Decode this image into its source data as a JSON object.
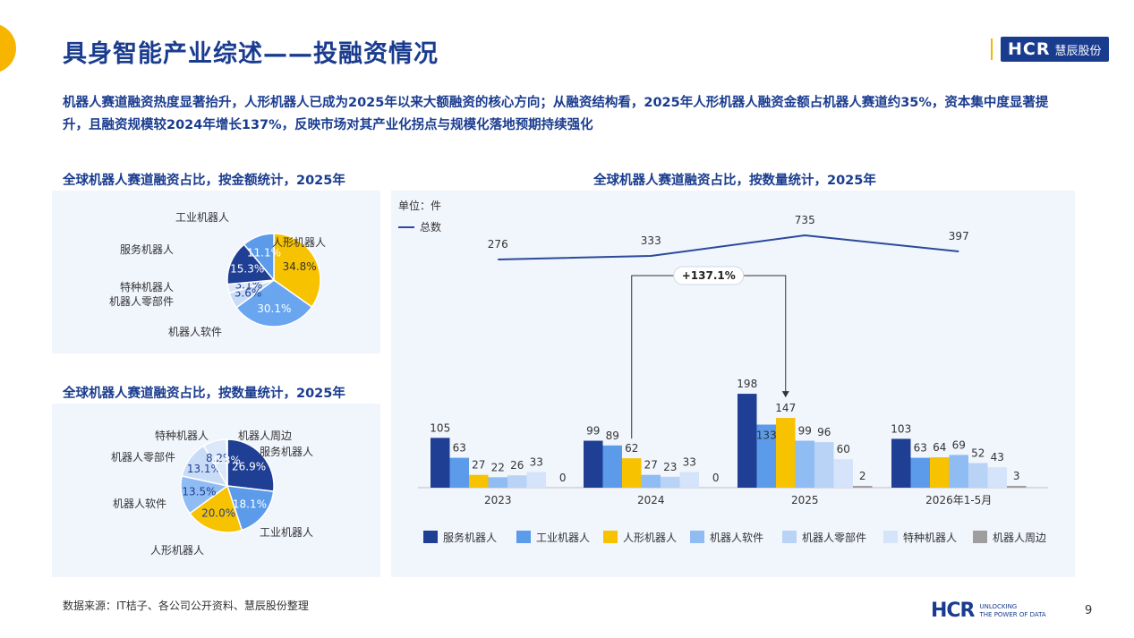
{
  "header": {
    "title": "具身智能产业综述——投融资情况",
    "logo_text": "HCR",
    "logo_subtext": "慧辰股份"
  },
  "summary": "机器人赛道融资热度显著抬升，人形机器人已成为2025年以来大额融资的核心方向；从融资结构看，2025年人形机器人融资金额占机器人赛道约35%，资本集中度显著提升，且融资规模较2024年增长137%，反映市场对其产业化拐点与规模化落地预期持续强化",
  "footer": {
    "source": "数据来源：IT桔子、各公司公开资料、慧辰股份整理",
    "logo": "HCR",
    "tagline_1": "UNLOCKING",
    "tagline_2": "THE POWER OF DATA",
    "page_number": "9"
  },
  "chart_data": [
    {
      "type": "pie",
      "title": "全球机器人赛道融资占比，按金额统计，2025年",
      "labels": [
        "人形机器人",
        "机器人软件",
        "机器人零部件",
        "特种机器人",
        "服务机器人",
        "工业机器人"
      ],
      "values": [
        34.8,
        30.1,
        5.6,
        3.1,
        15.3,
        11.1
      ],
      "value_labels": [
        "34.8%",
        "30.1%",
        "5.6%",
        "3.1%",
        "15.3%",
        "11.1%"
      ],
      "colors": [
        "#f7c200",
        "#6aa6f0",
        "#c9dcf7",
        "#dbe8fa",
        "#1f3f94",
        "#5b9bea"
      ]
    },
    {
      "type": "pie",
      "title": "全球机器人赛道融资占比，按数量统计，2025年",
      "labels": [
        "服务机器人",
        "工业机器人",
        "人形机器人",
        "机器人软件",
        "机器人零部件",
        "特种机器人",
        "机器人周边"
      ],
      "values": [
        26.9,
        18.1,
        20.0,
        13.5,
        13.1,
        8.2,
        0.3
      ],
      "value_labels": [
        "26.9%",
        "18.1%",
        "20.0%",
        "13.5%",
        "13.1%",
        "8.2%",
        "0.3%"
      ],
      "colors": [
        "#1f3f94",
        "#5b9bea",
        "#f7c200",
        "#8fbcf3",
        "#c9dcf7",
        "#dbe8fa",
        "#9e9e9e"
      ]
    },
    {
      "type": "bar",
      "title": "全球机器人赛道融资占比，按数量统计，2025年",
      "unit_label": "单位：件",
      "categories": [
        "2023",
        "2024",
        "2025",
        "2026年1-5月"
      ],
      "series": [
        {
          "name": "服务机器人",
          "values": [
            105,
            99,
            198,
            103
          ],
          "color": "#1f3f94"
        },
        {
          "name": "工业机器人",
          "values": [
            63,
            89,
            133,
            63
          ],
          "color": "#5b9bea"
        },
        {
          "name": "人形机器人",
          "values": [
            27,
            62,
            147,
            64
          ],
          "color": "#f7c200"
        },
        {
          "name": "机器人软件",
          "values": [
            22,
            27,
            99,
            69
          ],
          "color": "#8fbcf3"
        },
        {
          "name": "机器人零部件",
          "values": [
            26,
            23,
            96,
            52
          ],
          "color": "#b9d3f7"
        },
        {
          "name": "特种机器人",
          "values": [
            33,
            33,
            60,
            43
          ],
          "color": "#d5e4fa"
        },
        {
          "name": "机器人周边",
          "values": [
            0,
            0,
            2,
            3
          ],
          "color": "#9e9e9e"
        }
      ],
      "line": {
        "name": "总数",
        "values": [
          276,
          333,
          735,
          397
        ],
        "color": "#2a4a9a"
      },
      "annotation": "+137.1%"
    }
  ]
}
